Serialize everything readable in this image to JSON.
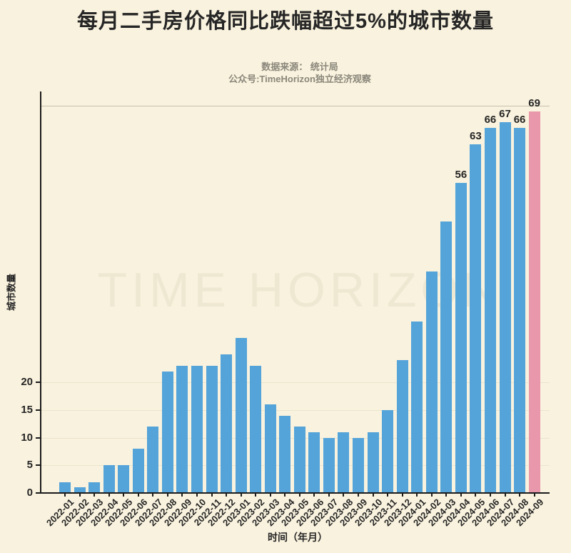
{
  "title": "每月二手房价格同比跌幅超过5%的城市数量",
  "subtitle": {
    "line1": "数据来源： 统计局",
    "line2": "公众号:TimeHorizon独立经济观察"
  },
  "watermark": "TIME HORIZON",
  "colors": {
    "background": "#f9f2de",
    "bar": "#54a4da",
    "bar_highlight": "#e898aa",
    "axis": "#1c1c1c",
    "grid": "#ebe3cc",
    "reference_line": "#c6c0ae",
    "text": "#262626",
    "subtitle_text": "#8a877b",
    "watermark_text": "#eee7d2"
  },
  "chart_data": {
    "type": "bar",
    "title": "每月二手房价格同比跌幅超过5%的城市数量",
    "xlabel": "时间（年月）",
    "ylabel": "城市数量",
    "categories": [
      "2022-01",
      "2022-02",
      "2022-03",
      "2022-04",
      "2022-05",
      "2022-06",
      "2022-07",
      "2022-08",
      "2022-09",
      "2022-10",
      "2022-11",
      "2022-12",
      "2023-01",
      "2023-02",
      "2023-03",
      "2023-04",
      "2023-05",
      "2023-06",
      "2023-07",
      "2023-08",
      "2023-09",
      "2023-10",
      "2023-11",
      "2023-12",
      "2024-01",
      "2024-02",
      "2024-03",
      "2024-04",
      "2024-05",
      "2024-06",
      "2024-07",
      "2024-08",
      "2024-09"
    ],
    "values": [
      2,
      1,
      2,
      5,
      5,
      8,
      12,
      22,
      23,
      23,
      23,
      25,
      28,
      23,
      16,
      14,
      12,
      11,
      10,
      11,
      10,
      11,
      15,
      24,
      31,
      40,
      49,
      56,
      63,
      66,
      67,
      66,
      69
    ],
    "value_labels_start_index": 27,
    "value_labels_shown": [
      56,
      63,
      66,
      67,
      66,
      69
    ],
    "highlight_index": 32,
    "y_ticks": [
      0,
      5,
      10,
      15,
      20
    ],
    "reference_line_y": 70,
    "ylim": [
      0,
      72
    ],
    "grid": "horizontal-at-yticks",
    "legend": "none"
  }
}
